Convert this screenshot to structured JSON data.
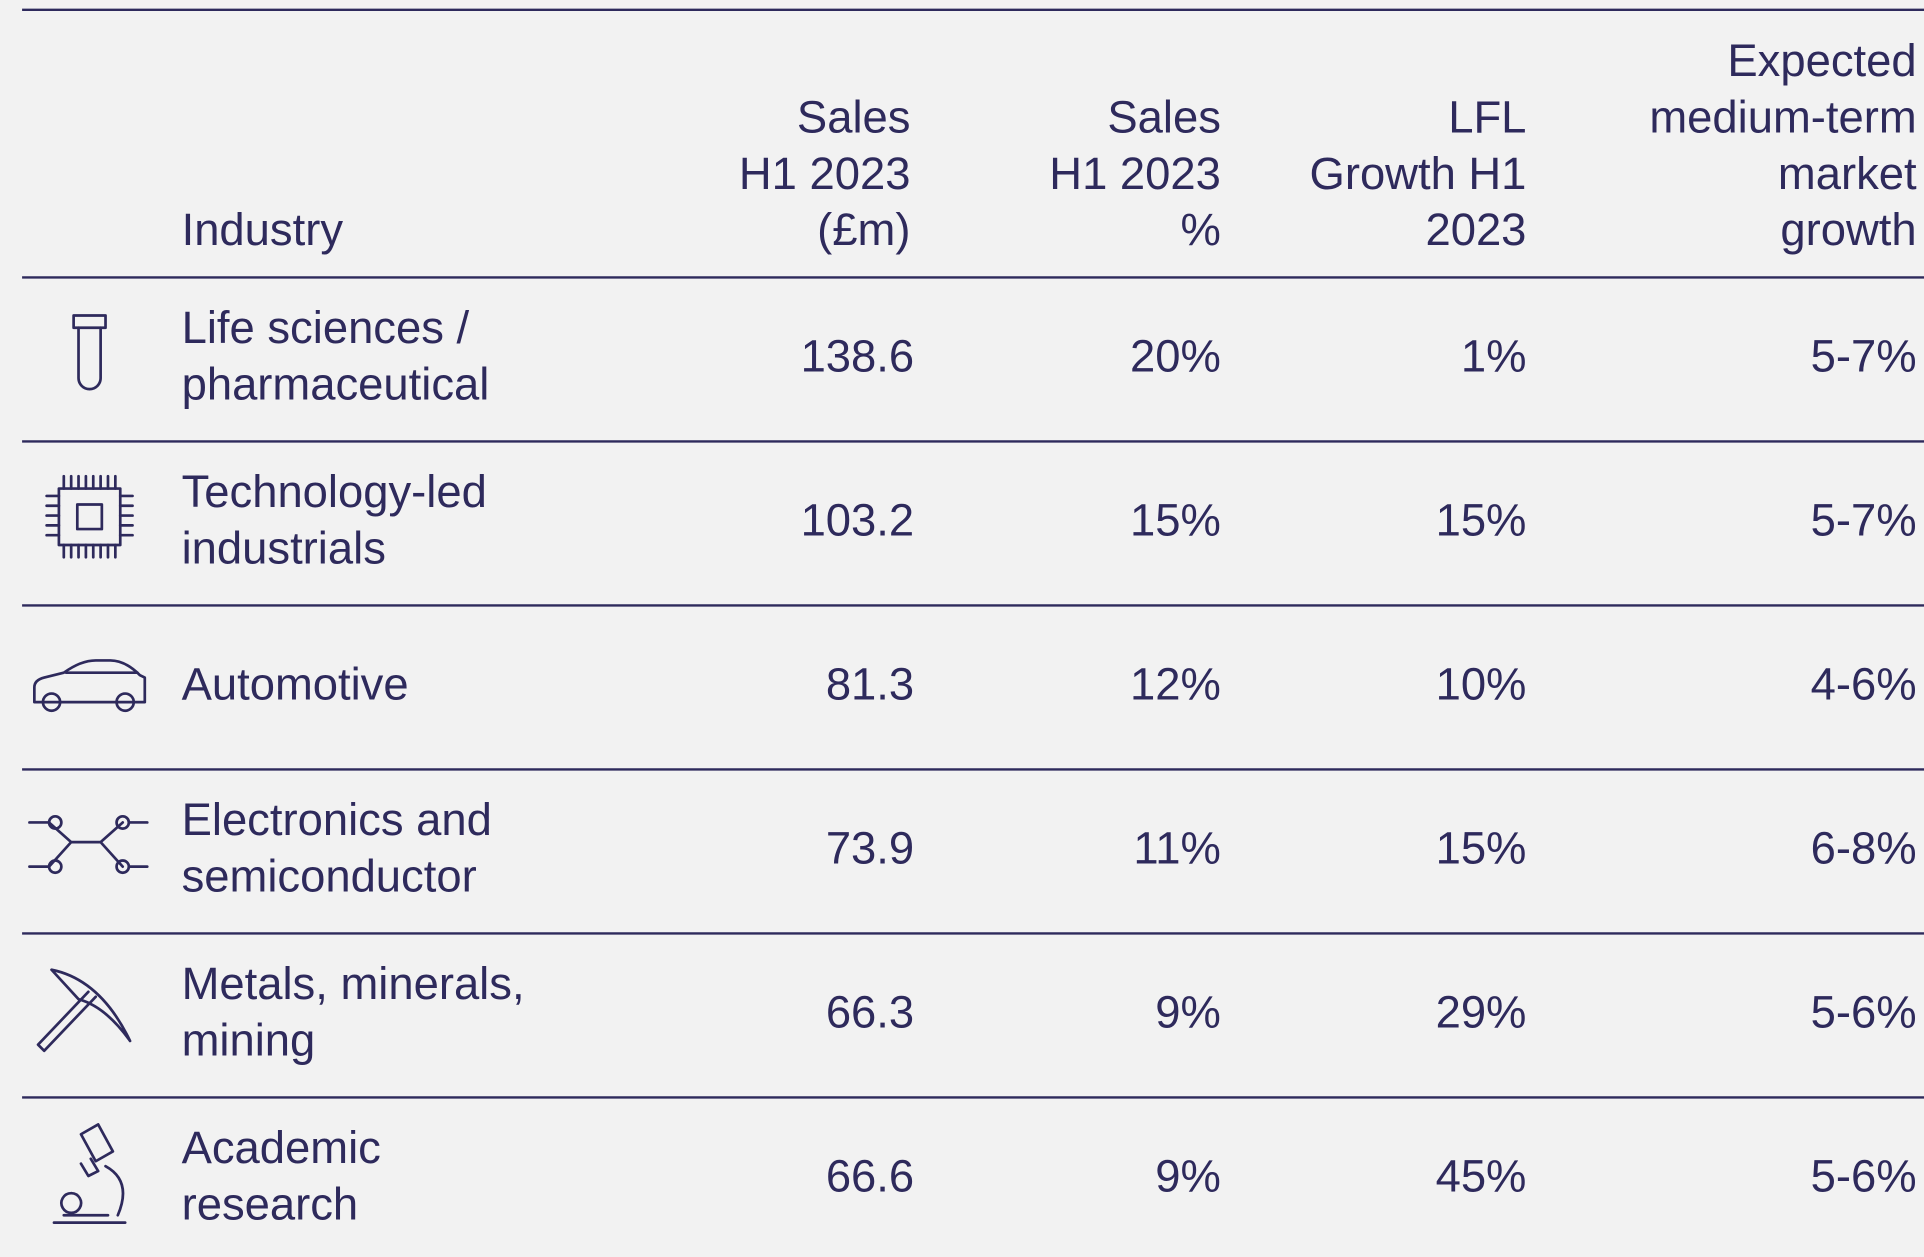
{
  "table": {
    "header": [
      [
        "Industry"
      ],
      [
        "Sales",
        "H1 2023",
        "(£m)"
      ],
      [
        "Sales",
        "H1 2023",
        "%"
      ],
      [
        "LFL",
        "Growth H1",
        "2023"
      ],
      [
        "Expected",
        "medium-term",
        "market",
        "growth"
      ]
    ],
    "rows": [
      [
        [
          "Life sciences /",
          "pharmaceutical"
        ],
        "138.6",
        "20%",
        "1%",
        "5-7%"
      ],
      [
        [
          "Technology-led",
          "industrials"
        ],
        "103.2",
        "15%",
        "15%",
        "5-7%"
      ],
      [
        [
          "Automotive"
        ],
        "81.3",
        "12%",
        "10%",
        "4-6%"
      ],
      [
        [
          "Electronics and",
          "semiconductor"
        ],
        "73.9",
        "11%",
        "15%",
        "6-8%"
      ],
      [
        [
          "Metals, minerals,",
          "mining"
        ],
        "66.3",
        "9%",
        "29%",
        "5-6%"
      ],
      [
        [
          "Academic",
          "research"
        ],
        "66.6",
        "9%",
        "45%",
        "5-6%"
      ]
    ]
  }
}
